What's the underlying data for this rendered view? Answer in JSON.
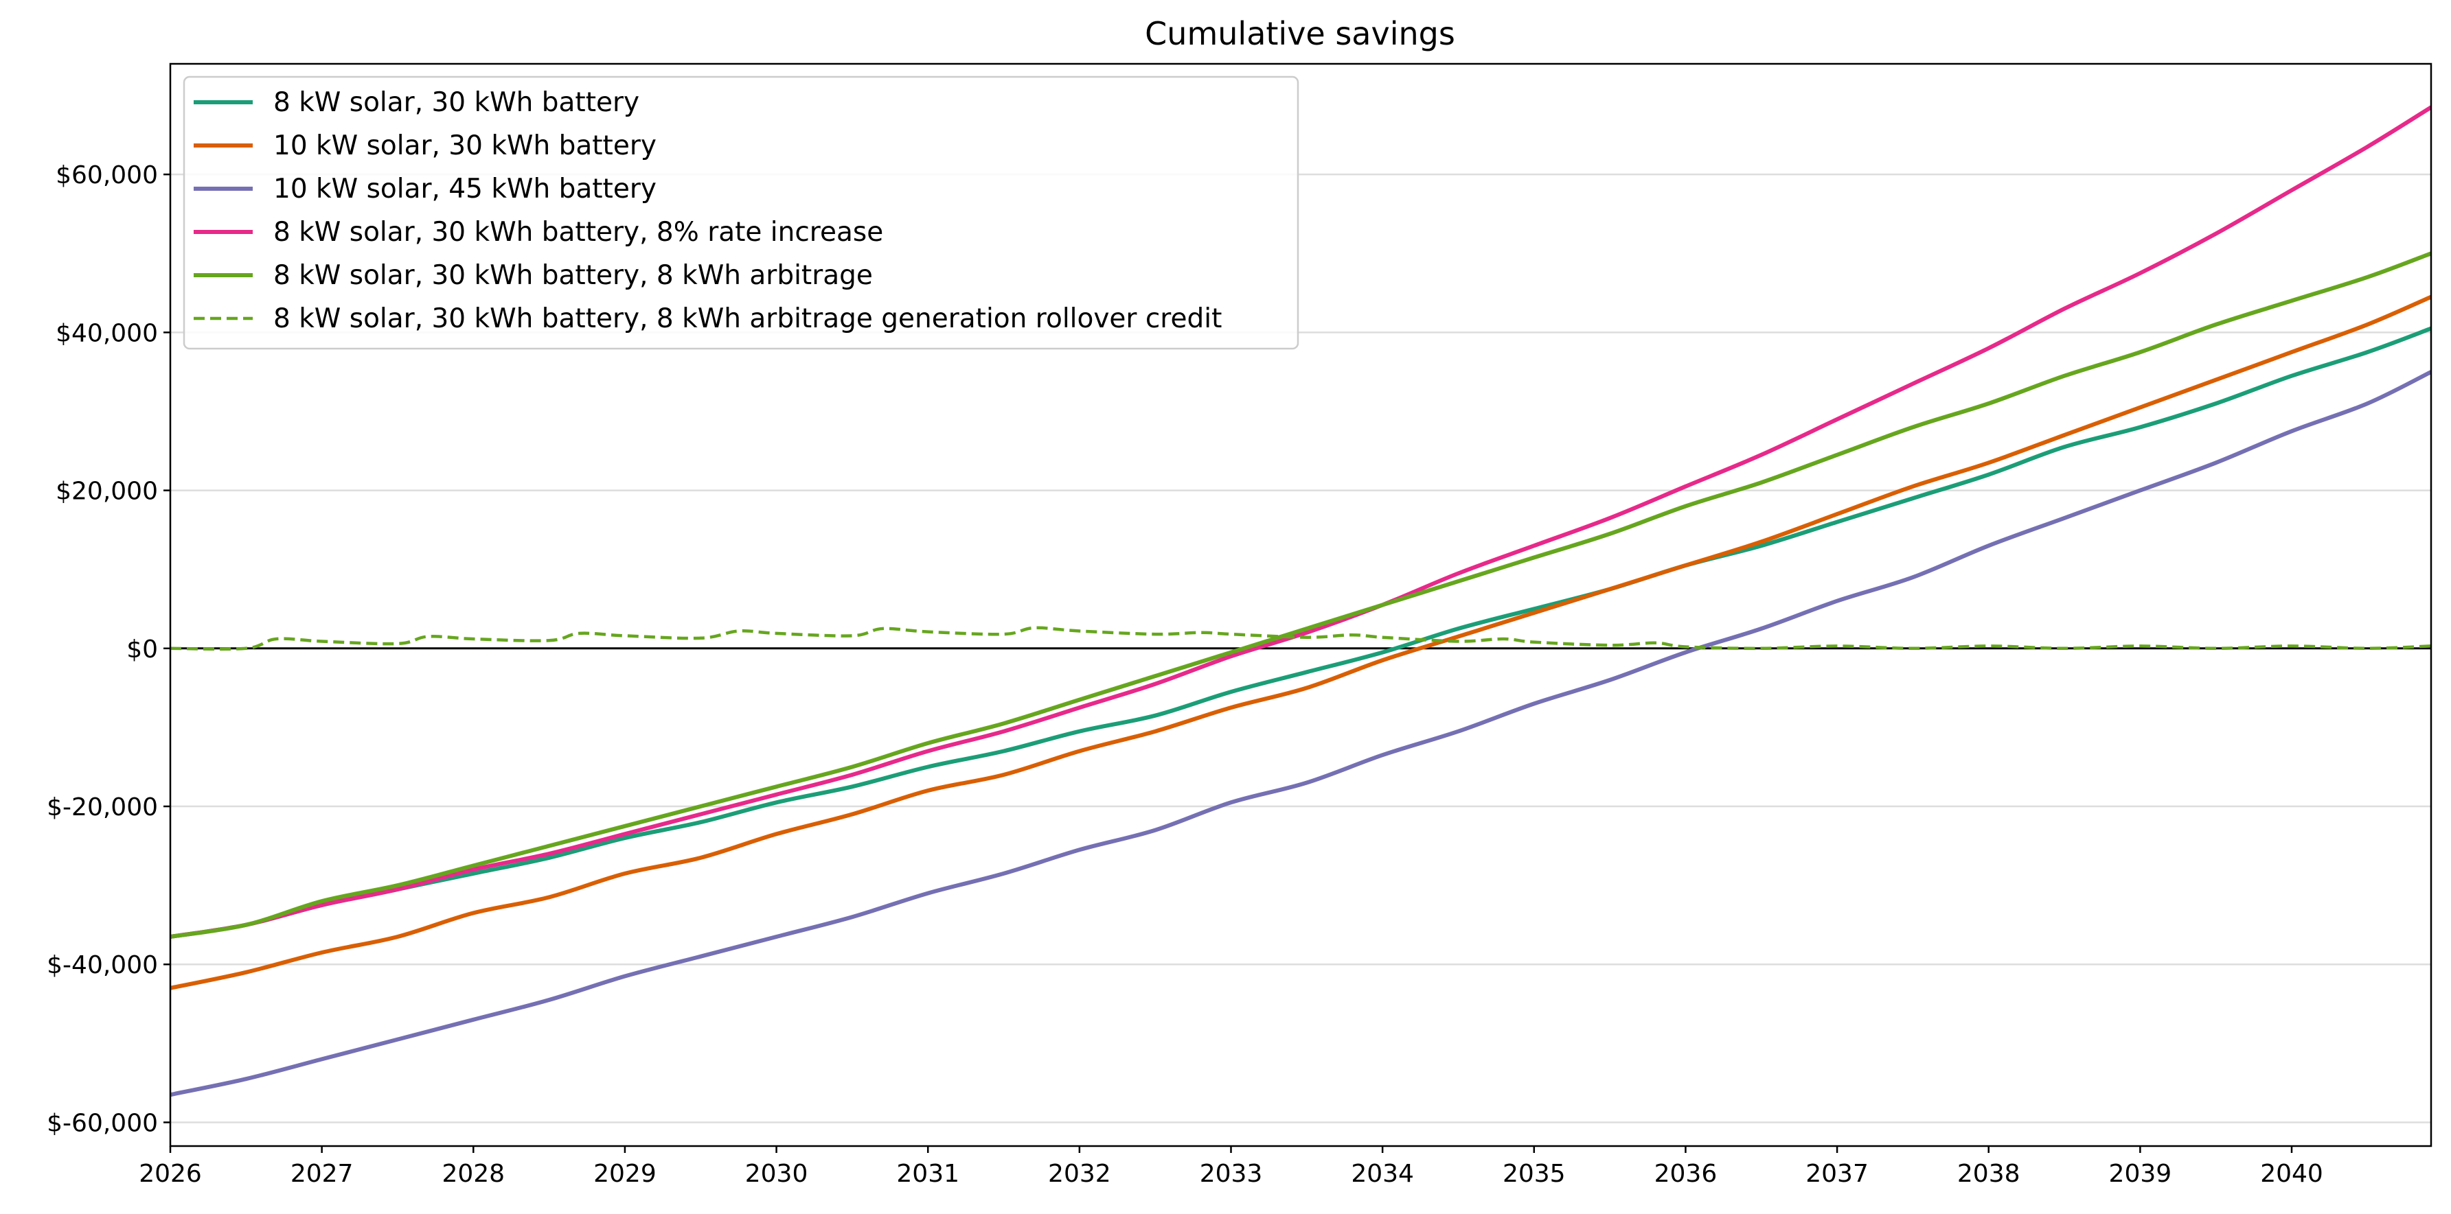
{
  "chart_data": {
    "type": "line",
    "title": "Cumulative savings",
    "xlabel": "",
    "ylabel": "",
    "xlim": [
      2026.0,
      2040.92
    ],
    "ylim": [
      -63000,
      74000
    ],
    "grid": "y",
    "legend_position": "top-left",
    "x_ticks": [
      2026,
      2027,
      2028,
      2029,
      2030,
      2031,
      2032,
      2033,
      2034,
      2035,
      2036,
      2037,
      2038,
      2039,
      2040
    ],
    "x_tick_labels": [
      "2026",
      "2027",
      "2028",
      "2029",
      "2030",
      "2031",
      "2032",
      "2033",
      "2034",
      "2035",
      "2036",
      "2037",
      "2038",
      "2039",
      "2040"
    ],
    "y_ticks": [
      -60000,
      -40000,
      -20000,
      0,
      20000,
      40000,
      60000
    ],
    "y_tick_labels": [
      "$-60,000",
      "$-40,000",
      "$-20,000",
      "$0",
      "$20,000",
      "$40,000",
      "$60,000"
    ],
    "series": [
      {
        "name": "8 kW solar, 30 kWh battery",
        "color": "#1b9e77",
        "dashed": false,
        "x": [
          2026.0,
          2026.5,
          2027.0,
          2027.5,
          2028.0,
          2028.5,
          2029.0,
          2029.5,
          2030.0,
          2030.5,
          2031.0,
          2031.5,
          2032.0,
          2032.5,
          2033.0,
          2033.5,
          2034.0,
          2034.5,
          2035.0,
          2035.5,
          2036.0,
          2036.5,
          2037.0,
          2037.5,
          2038.0,
          2038.5,
          2039.0,
          2039.5,
          2040.0,
          2040.5,
          2040.92
        ],
        "y": [
          -36500,
          -35000,
          -32500,
          -30500,
          -28500,
          -26500,
          -24000,
          -22000,
          -19500,
          -17500,
          -15000,
          -13000,
          -10500,
          -8500,
          -5500,
          -3000,
          -500,
          2500,
          5000,
          7500,
          10500,
          13000,
          16000,
          19000,
          22000,
          25500,
          28000,
          31000,
          34500,
          37500,
          40500
        ]
      },
      {
        "name": "10 kW solar, 30 kWh battery",
        "color": "#d95f02",
        "dashed": false,
        "x": [
          2026.0,
          2026.5,
          2027.0,
          2027.5,
          2028.0,
          2028.5,
          2029.0,
          2029.5,
          2030.0,
          2030.5,
          2031.0,
          2031.5,
          2032.0,
          2032.5,
          2033.0,
          2033.5,
          2034.0,
          2034.5,
          2035.0,
          2035.5,
          2036.0,
          2036.5,
          2037.0,
          2037.5,
          2038.0,
          2038.5,
          2039.0,
          2039.5,
          2040.0,
          2040.5,
          2040.92
        ],
        "y": [
          -43000,
          -41000,
          -38500,
          -36500,
          -33500,
          -31500,
          -28500,
          -26500,
          -23500,
          -21000,
          -18000,
          -16000,
          -13000,
          -10500,
          -7500,
          -5000,
          -1500,
          1500,
          4500,
          7500,
          10500,
          13500,
          17000,
          20500,
          23500,
          27000,
          30500,
          34000,
          37500,
          41000,
          44500
        ]
      },
      {
        "name": "10 kW solar, 45 kWh battery",
        "color": "#7570b3",
        "dashed": false,
        "x": [
          2026.0,
          2026.5,
          2027.0,
          2027.5,
          2028.0,
          2028.5,
          2029.0,
          2029.5,
          2030.0,
          2030.5,
          2031.0,
          2031.5,
          2032.0,
          2032.5,
          2033.0,
          2033.5,
          2034.0,
          2034.5,
          2035.0,
          2035.5,
          2036.0,
          2036.5,
          2037.0,
          2037.5,
          2038.0,
          2038.5,
          2039.0,
          2039.5,
          2040.0,
          2040.5,
          2040.92
        ],
        "y": [
          -56500,
          -54500,
          -52000,
          -49500,
          -47000,
          -44500,
          -41500,
          -39000,
          -36500,
          -34000,
          -31000,
          -28500,
          -25500,
          -23000,
          -19500,
          -17000,
          -13500,
          -10500,
          -7000,
          -4000,
          -500,
          2500,
          6000,
          9000,
          13000,
          16500,
          20000,
          23500,
          27500,
          31000,
          35000
        ]
      },
      {
        "name": "8 kW solar, 30 kWh battery, 8% rate increase",
        "color": "#e7298a",
        "dashed": false,
        "x": [
          2026.0,
          2026.5,
          2027.0,
          2027.5,
          2028.0,
          2028.5,
          2029.0,
          2029.5,
          2030.0,
          2030.5,
          2031.0,
          2031.5,
          2032.0,
          2032.5,
          2033.0,
          2033.5,
          2034.0,
          2034.5,
          2035.0,
          2035.5,
          2036.0,
          2036.5,
          2037.0,
          2037.5,
          2038.0,
          2038.5,
          2039.0,
          2039.5,
          2040.0,
          2040.5,
          2040.92
        ],
        "y": [
          -36500,
          -35000,
          -32500,
          -30500,
          -28000,
          -26000,
          -23500,
          -21000,
          -18500,
          -16000,
          -13000,
          -10500,
          -7500,
          -4500,
          -1000,
          2000,
          5500,
          9500,
          13000,
          16500,
          20500,
          24500,
          29000,
          33500,
          38000,
          43000,
          47500,
          52500,
          58000,
          63500,
          68500
        ]
      },
      {
        "name": "8 kW solar, 30 kWh battery, 8 kWh arbitrage",
        "color": "#66a61e",
        "dashed": false,
        "x": [
          2026.0,
          2026.5,
          2027.0,
          2027.5,
          2028.0,
          2028.5,
          2029.0,
          2029.5,
          2030.0,
          2030.5,
          2031.0,
          2031.5,
          2032.0,
          2032.5,
          2033.0,
          2033.5,
          2034.0,
          2034.5,
          2035.0,
          2035.5,
          2036.0,
          2036.5,
          2037.0,
          2037.5,
          2038.0,
          2038.5,
          2039.0,
          2039.5,
          2040.0,
          2040.5,
          2040.92
        ],
        "y": [
          -36500,
          -35000,
          -32000,
          -30000,
          -27500,
          -25000,
          -22500,
          -20000,
          -17500,
          -15000,
          -12000,
          -9500,
          -6500,
          -3500,
          -500,
          2500,
          5500,
          8500,
          11500,
          14500,
          18000,
          21000,
          24500,
          28000,
          31000,
          34500,
          37500,
          41000,
          44000,
          47000,
          50000
        ]
      },
      {
        "name": "8 kW solar, 30 kWh battery, 8 kWh arbitrage generation rollover credit",
        "color": "#66a61e",
        "dashed": true,
        "x": [
          2026.0,
          2026.5,
          2026.7,
          2027.0,
          2027.5,
          2027.7,
          2028.0,
          2028.5,
          2028.7,
          2029.0,
          2029.5,
          2029.75,
          2030.0,
          2030.5,
          2030.7,
          2031.0,
          2031.5,
          2031.7,
          2032.0,
          2032.5,
          2032.8,
          2033.0,
          2033.5,
          2033.8,
          2034.0,
          2034.5,
          2034.8,
          2035.0,
          2035.5,
          2035.8,
          2036.0,
          2036.5,
          2037.0,
          2037.5,
          2038.0,
          2038.5,
          2039.0,
          2039.5,
          2040.0,
          2040.5,
          2040.92
        ],
        "y": [
          0,
          0,
          1200,
          900,
          600,
          1500,
          1200,
          1000,
          1900,
          1600,
          1300,
          2200,
          1900,
          1600,
          2500,
          2100,
          1800,
          2600,
          2200,
          1800,
          2000,
          1800,
          1400,
          1700,
          1400,
          900,
          1200,
          800,
          400,
          700,
          200,
          0,
          300,
          0,
          300,
          0,
          300,
          0,
          300,
          0,
          300
        ]
      }
    ]
  }
}
